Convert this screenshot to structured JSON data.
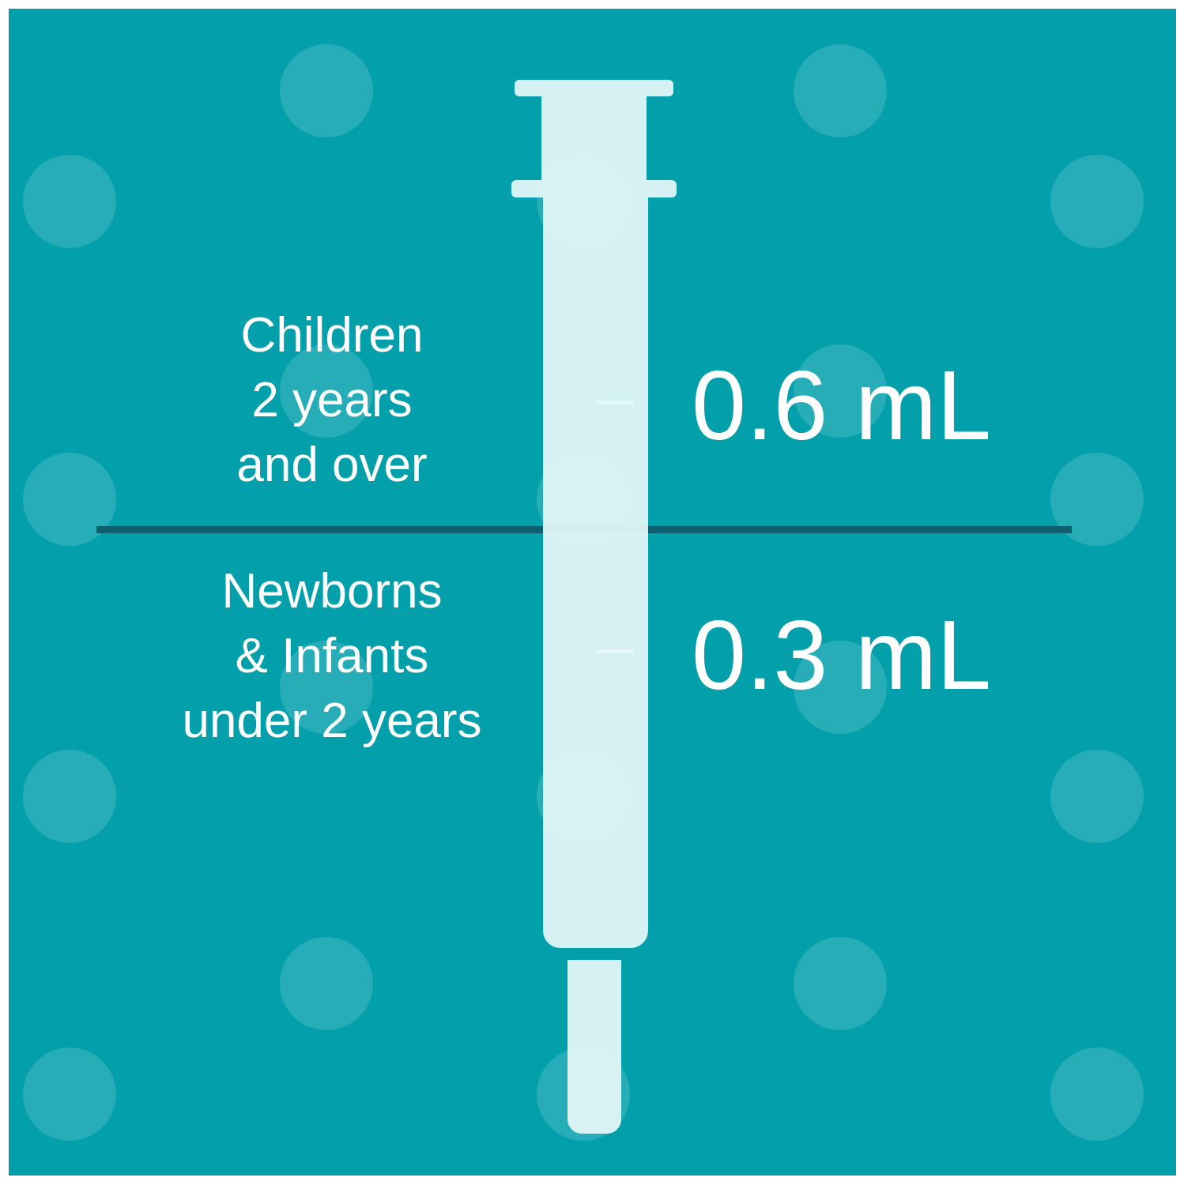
{
  "colors": {
    "background": "#03a0ac",
    "syringe": "#e6f7f9",
    "divider": "#0d6070",
    "text": "#ffffff"
  },
  "upper": {
    "label_lines": [
      "Children",
      "2 years",
      "and over"
    ],
    "dose": "0.6 mL"
  },
  "lower": {
    "label_lines": [
      "Newborns",
      "& Infants",
      "under 2 years"
    ],
    "dose": "0.3 mL"
  }
}
